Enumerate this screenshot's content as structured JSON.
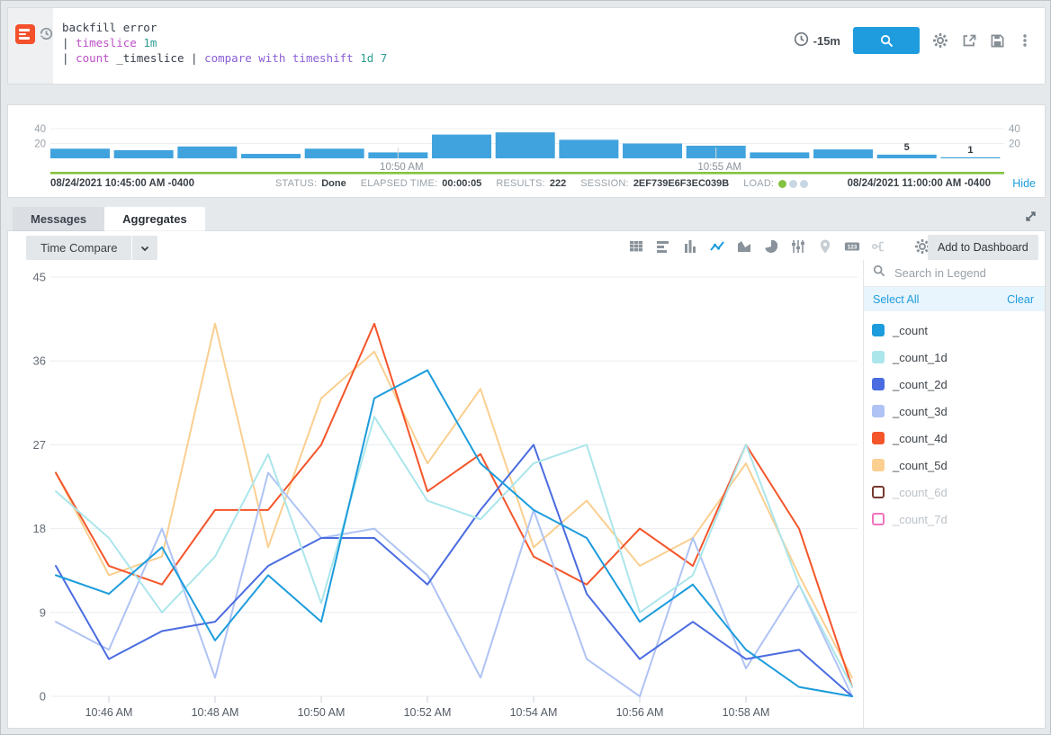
{
  "colors": {
    "accent_blue": "#1E9CDE",
    "bar_blue": "#41A3DD",
    "progress_green": "#84C341",
    "icon_gray": "#8a939b",
    "icon_disabled": "#c6cdd3",
    "grid_line": "#e8ecf1"
  },
  "query_panel": {
    "lines": [
      [
        {
          "t": "backfill error",
          "c": "q-plain"
        }
      ],
      [
        {
          "t": "| ",
          "c": "q-plain"
        },
        {
          "t": "timeslice",
          "c": "q-op1"
        },
        {
          "t": " ",
          "c": "q-plain"
        },
        {
          "t": "1m",
          "c": "q-val"
        }
      ],
      [
        {
          "t": "| ",
          "c": "q-plain"
        },
        {
          "t": "count",
          "c": "q-op1"
        },
        {
          "t": " _timeslice ",
          "c": "q-plain"
        },
        {
          "t": "| ",
          "c": "q-plain"
        },
        {
          "t": "compare with timeshift",
          "c": "q-op2"
        },
        {
          "t": " ",
          "c": "q-plain"
        },
        {
          "t": "1d",
          "c": "q-val"
        },
        {
          "t": " ",
          "c": "q-plain"
        },
        {
          "t": "7",
          "c": "q-val"
        }
      ]
    ],
    "time_range": "-15m"
  },
  "status_bar": {
    "start_time": "08/24/2021 10:45:00 AM -0400",
    "end_time": "08/24/2021 11:00:00 AM -0400",
    "items": [
      {
        "label": "STATUS:",
        "value": "Done"
      },
      {
        "label": "ELAPSED TIME:",
        "value": "00:00:05"
      },
      {
        "label": "RESULTS:",
        "value": "222"
      },
      {
        "label": "SESSION:",
        "value": "2EF739E6F3EC039B"
      },
      {
        "label": "LOAD:",
        "value": "",
        "dots": [
          "#84C341",
          "#C9D7E4",
          "#C9D7E4"
        ]
      }
    ],
    "hide_link": "Hide"
  },
  "tabs": {
    "messages": "Messages",
    "aggregates": "Aggregates"
  },
  "toolbar": {
    "time_compare_label": "Time Compare",
    "add_to_dashboard_label": "Add to Dashboard",
    "icons": [
      {
        "name": "table-icon",
        "state": "default"
      },
      {
        "name": "bar-chart-horizontal-icon",
        "state": "default"
      },
      {
        "name": "column-chart-icon",
        "state": "default"
      },
      {
        "name": "line-chart-icon",
        "state": "active"
      },
      {
        "name": "area-chart-icon",
        "state": "default"
      },
      {
        "name": "pie-chart-icon",
        "state": "default"
      },
      {
        "name": "box-plot-icon",
        "state": "default"
      },
      {
        "name": "map-pin-icon",
        "state": "disabled"
      },
      {
        "name": "single-value-icon",
        "state": "default"
      },
      {
        "name": "flow-diagram-icon",
        "state": "disabled"
      }
    ]
  },
  "legend": {
    "search_placeholder": "Search in Legend",
    "select_all": "Select All",
    "clear": "Clear",
    "items": [
      {
        "label": "_count",
        "color": "#1C9CDC",
        "selected": true
      },
      {
        "label": "_count_1d",
        "color": "#ABE6EB",
        "selected": true
      },
      {
        "label": "_count_2d",
        "color": "#4A6CE0",
        "selected": true
      },
      {
        "label": "_count_3d",
        "color": "#AFC3F4",
        "selected": true
      },
      {
        "label": "_count_4d",
        "color": "#F4552A",
        "selected": true
      },
      {
        "label": "_count_5d",
        "color": "#FACF90",
        "selected": true
      },
      {
        "label": "_count_6d",
        "color": "#77392F",
        "selected": false
      },
      {
        "label": "_count_7d",
        "color": "#F272BE",
        "selected": false
      }
    ]
  },
  "chart_data": [
    {
      "type": "bar",
      "title": "message histogram",
      "x": [
        "10:45",
        "10:46",
        "10:47",
        "10:48",
        "10:49",
        "10:50",
        "10:51",
        "10:52",
        "10:53",
        "10:54",
        "10:55",
        "10:56",
        "10:57",
        "10:58",
        "10:59"
      ],
      "values": [
        13,
        11,
        16,
        6,
        13,
        8,
        32,
        35,
        25,
        20,
        17,
        8,
        12,
        5,
        1
      ],
      "bar_labels": [
        {
          "index": 13,
          "label": "5"
        },
        {
          "index": 14,
          "label": "1"
        }
      ],
      "x_tick_labels": [
        {
          "index": 5,
          "label": "10:50 AM"
        },
        {
          "index": 10,
          "label": "10:55 AM"
        }
      ],
      "y_ticks": [
        20,
        40
      ],
      "ylim": [
        0,
        45
      ],
      "bar_color": "#41A3DD"
    },
    {
      "type": "line",
      "title": "aggregates time compare",
      "x": [
        "10:45",
        "10:46",
        "10:47",
        "10:48",
        "10:49",
        "10:50",
        "10:51",
        "10:52",
        "10:53",
        "10:54",
        "10:55",
        "10:56",
        "10:57",
        "10:58",
        "10:59",
        "11:00"
      ],
      "x_tick_labels": [
        {
          "index": 1,
          "label": "10:46 AM"
        },
        {
          "index": 3,
          "label": "10:48 AM"
        },
        {
          "index": 5,
          "label": "10:50 AM"
        },
        {
          "index": 7,
          "label": "10:52 AM"
        },
        {
          "index": 9,
          "label": "10:54 AM"
        },
        {
          "index": 11,
          "label": "10:56 AM"
        },
        {
          "index": 13,
          "label": "10:58 AM"
        }
      ],
      "y_ticks": [
        0,
        9,
        18,
        27,
        36,
        45
      ],
      "ylim": [
        0,
        45
      ],
      "grid": true,
      "legend_position": "right",
      "series": [
        {
          "name": "_count",
          "color": "#1C9CDC",
          "values": [
            13,
            11,
            16,
            6,
            13,
            8,
            32,
            35,
            25,
            20,
            17,
            8,
            12,
            5,
            1,
            0
          ]
        },
        {
          "name": "_count_1d",
          "color": "#ABE6EB",
          "values": [
            22,
            17,
            9,
            15,
            26,
            10,
            30,
            21,
            19,
            25,
            27,
            9,
            13,
            27,
            12,
            1
          ]
        },
        {
          "name": "_count_2d",
          "color": "#4A6CE0",
          "values": [
            14,
            4,
            7,
            8,
            14,
            17,
            17,
            12,
            20,
            27,
            11,
            4,
            8,
            4,
            5,
            0
          ]
        },
        {
          "name": "_count_3d",
          "color": "#AFC3F4",
          "values": [
            8,
            5,
            18,
            2,
            24,
            17,
            18,
            13,
            2,
            20,
            4,
            0,
            17,
            3,
            12,
            0
          ]
        },
        {
          "name": "_count_4d",
          "color": "#F4552A",
          "values": [
            24,
            14,
            12,
            20,
            20,
            27,
            40,
            22,
            26,
            15,
            12,
            18,
            14,
            27,
            18,
            1
          ]
        },
        {
          "name": "_count_5d",
          "color": "#FACF90",
          "values": [
            24,
            13,
            15,
            40,
            16,
            32,
            37,
            25,
            33,
            16,
            21,
            14,
            17,
            25,
            13,
            2
          ]
        }
      ]
    }
  ]
}
